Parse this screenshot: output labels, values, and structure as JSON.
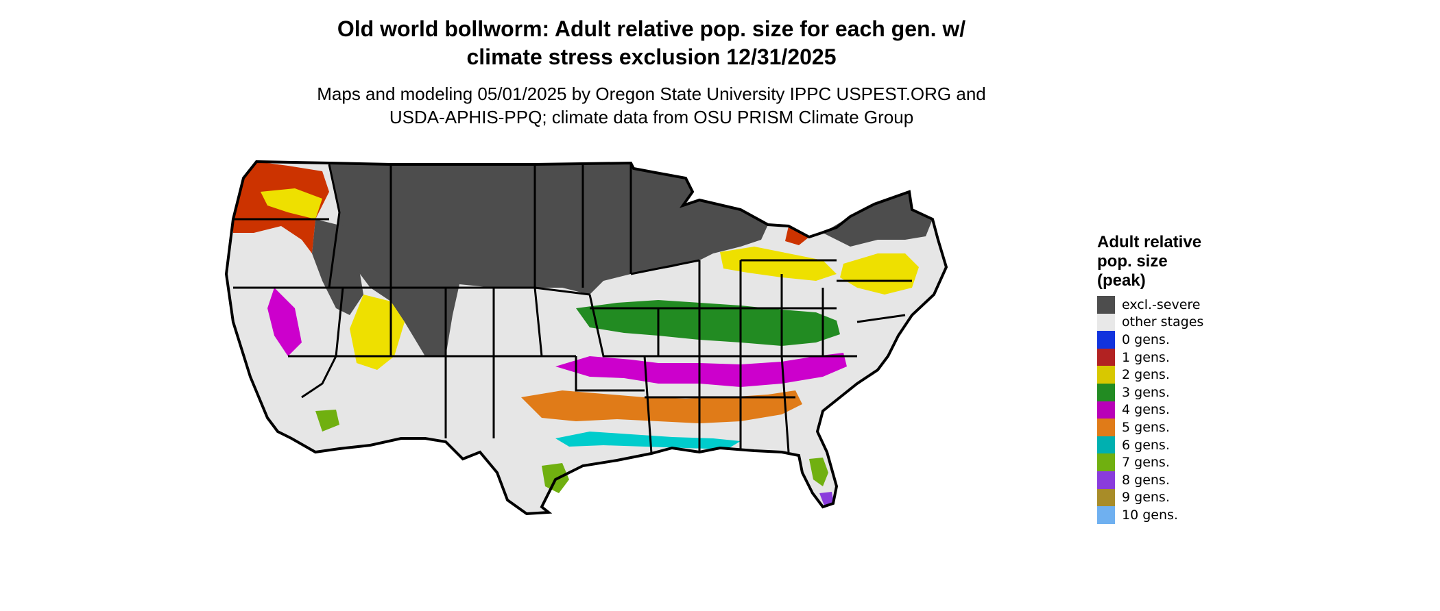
{
  "header": {
    "title_line1": "Old world bollworm: Adult relative pop. size for each gen. w/",
    "title_line2": "climate stress exclusion 12/31/2025",
    "subtitle_line1": "Maps and modeling 05/01/2025 by Oregon State University IPPC USPEST.ORG and",
    "subtitle_line2": "USDA-APHIS-PPQ; climate data from OSU PRISM Climate Group"
  },
  "legend": {
    "title_line1": "Adult relative",
    "title_line2": "pop. size",
    "title_line3": "(peak)",
    "items": [
      {
        "label": "excl.-severe",
        "color": "#4d4d4d"
      },
      {
        "label": "other stages",
        "color": "#e8e8e8"
      },
      {
        "label": "0 gens.",
        "color": "#1133dd"
      },
      {
        "label": "1 gens.",
        "color": "#b22222"
      },
      {
        "label": "2 gens.",
        "color": "#d8c800"
      },
      {
        "label": "3 gens.",
        "color": "#228b22"
      },
      {
        "label": "4 gens.",
        "color": "#b800b8"
      },
      {
        "label": "5 gens.",
        "color": "#e07b18"
      },
      {
        "label": "6 gens.",
        "color": "#00b0b0"
      },
      {
        "label": "7 gens.",
        "color": "#70b010"
      },
      {
        "label": "8 gens.",
        "color": "#8a3cdc"
      },
      {
        "label": "9 gens.",
        "color": "#a88c28"
      },
      {
        "label": "10 gens.",
        "color": "#6fb0f0"
      }
    ]
  },
  "map": {
    "colors": {
      "excl": "#4d4d4d",
      "other": "#e6e6e6",
      "g0": "#1133dd",
      "g1": "#cc3300",
      "g2": "#eee000",
      "g3": "#228b22",
      "g3light": "#90ee90",
      "g4": "#cc00cc",
      "g5": "#e07b18",
      "g6": "#00cccc",
      "g7": "#70b010",
      "g8": "#8a3cdc",
      "border": "#000000"
    }
  }
}
